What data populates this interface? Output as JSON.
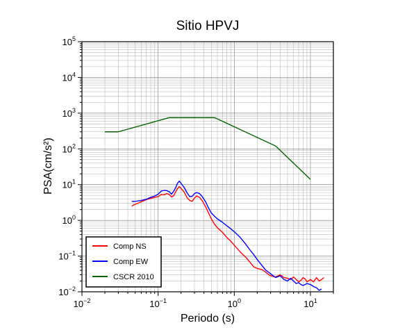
{
  "chart_data": {
    "type": "line",
    "title": "Sitio HPVJ",
    "xlabel": "Periodo (s)",
    "ylabel": "PSA(cm/s²)",
    "x_scale": "log",
    "y_scale": "log",
    "xlim": [
      0.01,
      20
    ],
    "ylim": [
      0.01,
      100000
    ],
    "x_ticks": [
      {
        "value": 0.01,
        "base": "10",
        "exp": "−2"
      },
      {
        "value": 0.1,
        "base": "10",
        "exp": "−1"
      },
      {
        "value": 1,
        "base": "10",
        "exp": "0"
      },
      {
        "value": 10,
        "base": "10",
        "exp": "1"
      }
    ],
    "y_ticks": [
      {
        "value": 0.01,
        "base": "10",
        "exp": "−2"
      },
      {
        "value": 0.1,
        "base": "10",
        "exp": "−1"
      },
      {
        "value": 1,
        "base": "10",
        "exp": "0"
      },
      {
        "value": 10,
        "base": "10",
        "exp": "1"
      },
      {
        "value": 100,
        "base": "10",
        "exp": "2"
      },
      {
        "value": 1000,
        "base": "10",
        "exp": "3"
      },
      {
        "value": 10000,
        "base": "10",
        "exp": "4"
      },
      {
        "value": 100000,
        "base": "10",
        "exp": "5"
      }
    ],
    "grid": true,
    "legend_position": "bottom-left",
    "series": [
      {
        "name": "Comp NS",
        "color": "#ff0000",
        "points": [
          [
            0.045,
            2.5
          ],
          [
            0.05,
            2.8
          ],
          [
            0.06,
            3.3
          ],
          [
            0.07,
            3.8
          ],
          [
            0.08,
            4.1
          ],
          [
            0.09,
            4.4
          ],
          [
            0.1,
            4.6
          ],
          [
            0.11,
            5.3
          ],
          [
            0.12,
            5.2
          ],
          [
            0.13,
            5.6
          ],
          [
            0.14,
            5.3
          ],
          [
            0.15,
            4.5
          ],
          [
            0.16,
            4.9
          ],
          [
            0.17,
            6.2
          ],
          [
            0.18,
            7.8
          ],
          [
            0.19,
            8.8
          ],
          [
            0.2,
            7.8
          ],
          [
            0.22,
            6.2
          ],
          [
            0.24,
            4.3
          ],
          [
            0.26,
            3.6
          ],
          [
            0.28,
            3.4
          ],
          [
            0.3,
            4.2
          ],
          [
            0.32,
            4.8
          ],
          [
            0.35,
            4.4
          ],
          [
            0.38,
            3.5
          ],
          [
            0.42,
            2.4
          ],
          [
            0.46,
            1.6
          ],
          [
            0.5,
            1.1
          ],
          [
            0.55,
            0.78
          ],
          [
            0.6,
            0.62
          ],
          [
            0.7,
            0.46
          ],
          [
            0.8,
            0.33
          ],
          [
            0.9,
            0.26
          ],
          [
            1.0,
            0.2
          ],
          [
            1.1,
            0.16
          ],
          [
            1.2,
            0.13
          ],
          [
            1.4,
            0.095
          ],
          [
            1.6,
            0.068
          ],
          [
            1.8,
            0.05
          ],
          [
            2.0,
            0.045
          ],
          [
            2.3,
            0.042
          ],
          [
            2.6,
            0.035
          ],
          [
            2.9,
            0.029
          ],
          [
            3.2,
            0.027
          ],
          [
            3.5,
            0.026
          ],
          [
            4.0,
            0.03
          ],
          [
            4.5,
            0.025
          ],
          [
            5.0,
            0.024
          ],
          [
            5.5,
            0.022
          ],
          [
            6.0,
            0.026
          ],
          [
            6.5,
            0.022
          ],
          [
            7.0,
            0.019
          ],
          [
            7.5,
            0.021
          ],
          [
            8.0,
            0.025
          ],
          [
            8.5,
            0.023
          ],
          [
            9.0,
            0.019
          ],
          [
            10.0,
            0.022
          ],
          [
            11.0,
            0.019
          ],
          [
            12.0,
            0.025
          ],
          [
            13.0,
            0.02
          ],
          [
            14.0,
            0.022
          ],
          [
            15.0,
            0.025
          ]
        ]
      },
      {
        "name": "Comp EW",
        "color": "#0000ff",
        "points": [
          [
            0.045,
            3.4
          ],
          [
            0.05,
            3.4
          ],
          [
            0.06,
            3.6
          ],
          [
            0.07,
            3.9
          ],
          [
            0.08,
            4.4
          ],
          [
            0.09,
            4.8
          ],
          [
            0.1,
            5.4
          ],
          [
            0.11,
            6.6
          ],
          [
            0.12,
            6.9
          ],
          [
            0.13,
            6.8
          ],
          [
            0.14,
            6.3
          ],
          [
            0.15,
            5.4
          ],
          [
            0.16,
            6.5
          ],
          [
            0.17,
            8.2
          ],
          [
            0.18,
            11.0
          ],
          [
            0.19,
            12.5
          ],
          [
            0.2,
            10.8
          ],
          [
            0.22,
            8.3
          ],
          [
            0.24,
            5.9
          ],
          [
            0.26,
            4.6
          ],
          [
            0.28,
            4.7
          ],
          [
            0.3,
            5.6
          ],
          [
            0.32,
            6.0
          ],
          [
            0.35,
            5.6
          ],
          [
            0.38,
            4.6
          ],
          [
            0.42,
            3.3
          ],
          [
            0.46,
            2.2
          ],
          [
            0.5,
            1.6
          ],
          [
            0.55,
            1.3
          ],
          [
            0.6,
            1.1
          ],
          [
            0.7,
            0.88
          ],
          [
            0.8,
            0.7
          ],
          [
            0.9,
            0.58
          ],
          [
            1.0,
            0.48
          ],
          [
            1.2,
            0.33
          ],
          [
            1.4,
            0.22
          ],
          [
            1.6,
            0.15
          ],
          [
            1.8,
            0.11
          ],
          [
            2.0,
            0.08
          ],
          [
            2.3,
            0.055
          ],
          [
            2.6,
            0.04
          ],
          [
            3.0,
            0.032
          ],
          [
            3.5,
            0.025
          ],
          [
            4.0,
            0.028
          ],
          [
            4.5,
            0.022
          ],
          [
            5.0,
            0.02
          ],
          [
            5.5,
            0.024
          ],
          [
            6.0,
            0.02
          ],
          [
            6.5,
            0.017
          ],
          [
            7.0,
            0.018
          ],
          [
            7.5,
            0.016
          ],
          [
            8.0,
            0.015
          ],
          [
            9.0,
            0.017
          ],
          [
            10.0,
            0.016
          ],
          [
            11.0,
            0.014
          ],
          [
            12.0,
            0.013
          ],
          [
            13.0,
            0.011
          ],
          [
            14.0,
            0.012
          ]
        ]
      },
      {
        "name": "CSCR 2010",
        "color": "#006400",
        "points": [
          [
            0.02,
            300
          ],
          [
            0.03,
            300
          ],
          [
            0.14,
            750
          ],
          [
            0.55,
            750
          ],
          [
            3.5,
            120
          ],
          [
            10.0,
            14
          ]
        ]
      }
    ]
  }
}
